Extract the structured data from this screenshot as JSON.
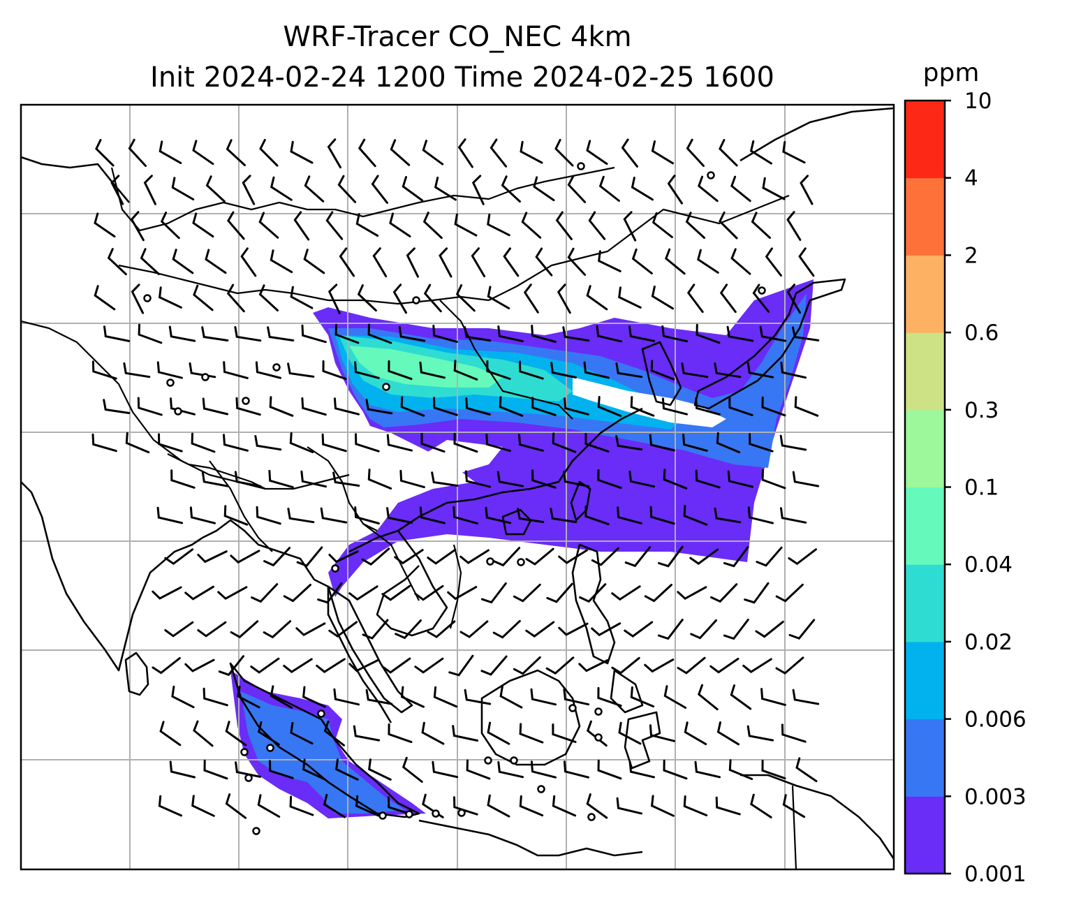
{
  "title": {
    "line1": "WRF-Tracer CO_NEC 4km",
    "line2": "Init 2024-02-24 1200 Time 2024-02-25 1600"
  },
  "colorbar": {
    "unit": "ppm",
    "levels": [
      "0.001",
      "0.003",
      "0.006",
      "0.02",
      "0.04",
      "0.1",
      "0.3",
      "0.6",
      "2",
      "4",
      "10"
    ],
    "colors": [
      "#6a2cf7",
      "#3777f4",
      "#02b2ee",
      "#2fdcd2",
      "#66f9bc",
      "#9cf89a",
      "#cde285",
      "#fdb163",
      "#fe7239",
      "#fd2916"
    ]
  },
  "map": {
    "gridlines": true,
    "overlays": [
      "coastlines",
      "country-borders",
      "wind-barbs",
      "co-tracer-shading"
    ]
  }
}
